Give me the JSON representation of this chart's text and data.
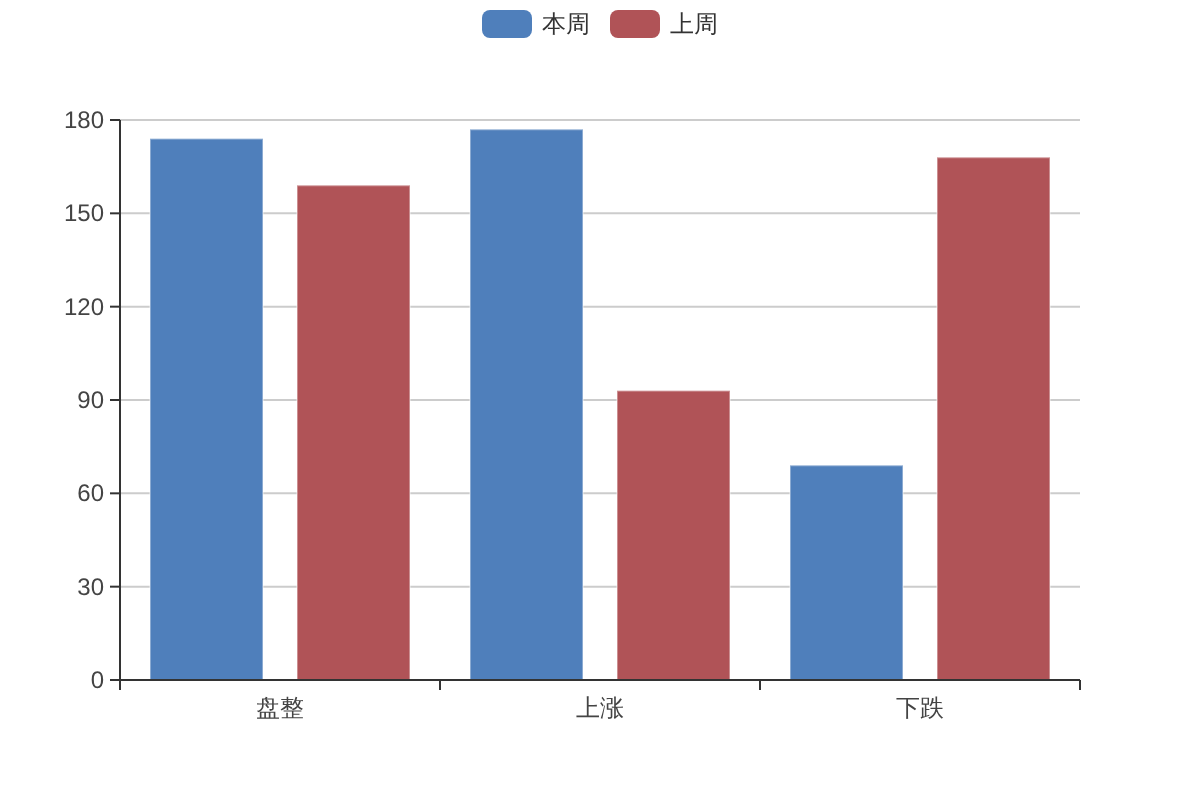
{
  "chart_data": {
    "type": "bar",
    "categories": [
      "盘整",
      "上涨",
      "下跌"
    ],
    "series": [
      {
        "name": "本周",
        "color": "#4f7fbb",
        "values": [
          174,
          177,
          69
        ]
      },
      {
        "name": "上周",
        "color": "#b05357",
        "values": [
          159,
          93,
          168
        ]
      }
    ],
    "ylim": [
      0,
      180
    ],
    "yticks": [
      0,
      30,
      60,
      90,
      120,
      150,
      180
    ],
    "grid": "y",
    "legend": "top"
  }
}
